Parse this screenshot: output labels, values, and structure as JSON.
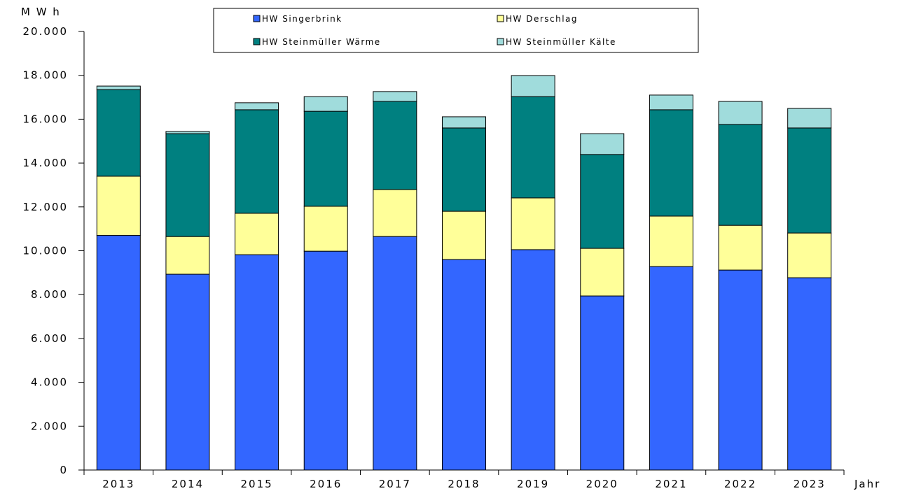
{
  "chart_data": {
    "type": "stacked-bar",
    "y_label": "M W h",
    "x_label": "Jahr",
    "categories": [
      "2013",
      "2014",
      "2015",
      "2016",
      "2017",
      "2018",
      "2019",
      "2020",
      "2021",
      "2022",
      "2023"
    ],
    "series": [
      {
        "name": "HW Singerbrink",
        "color": "#3366ff",
        "values": [
          10700,
          8930,
          9820,
          9980,
          10650,
          9600,
          10050,
          7940,
          9280,
          9120,
          8770
        ]
      },
      {
        "name": "HW Derschlag",
        "color": "#ffff99",
        "values": [
          2700,
          1720,
          1890,
          2050,
          2140,
          2200,
          2360,
          2170,
          2300,
          2040,
          2040
        ]
      },
      {
        "name": "HW Steinmüller Wärme",
        "color": "#008080",
        "values": [
          3950,
          4690,
          4720,
          4330,
          4020,
          3800,
          4620,
          4280,
          4850,
          4600,
          4790
        ]
      },
      {
        "name": "HW Steinmüller Kälte",
        "color": "#a0dcdc",
        "values": [
          160,
          100,
          320,
          670,
          450,
          510,
          960,
          950,
          670,
          1050,
          890
        ]
      }
    ],
    "ylim": [
      0,
      20000
    ],
    "yticks": [
      0,
      {
        "value": 2000,
        "label": "2.000"
      },
      {
        "value": 4000,
        "label": "4.000"
      },
      {
        "value": 6000,
        "label": "6.000"
      },
      {
        "value": 8000,
        "label": "8.000"
      },
      {
        "value": 10000,
        "label": "10.000"
      },
      {
        "value": 12000,
        "label": "12.000"
      },
      {
        "value": 14000,
        "label": "14.000"
      },
      {
        "value": 16000,
        "label": "16.000"
      },
      {
        "value": 18000,
        "label": "18.000"
      },
      {
        "value": 20000,
        "label": "20.000"
      }
    ],
    "grid": false
  }
}
